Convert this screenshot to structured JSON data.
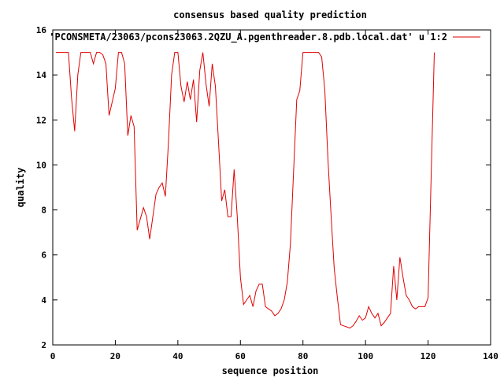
{
  "chart_data": {
    "type": "line",
    "title": "consensus based quality prediction",
    "xlabel": "sequence position",
    "ylabel": "quality",
    "xlim": [
      0,
      140
    ],
    "ylim": [
      2,
      16
    ],
    "xticks": [
      0,
      20,
      40,
      60,
      80,
      100,
      120,
      140
    ],
    "yticks": [
      2,
      4,
      6,
      8,
      10,
      12,
      14,
      16
    ],
    "grid": false,
    "legend_position": "top-right",
    "series": [
      {
        "name": "'PCONSMETA/23063/pcons23063.2QZU_A.pgenthreader.8.pdb.local.dat' u 1:2",
        "color": "#e00000",
        "x": [
          1,
          2,
          3,
          4,
          5,
          6,
          7,
          8,
          9,
          10,
          11,
          12,
          13,
          14,
          15,
          16,
          17,
          18,
          19,
          20,
          21,
          22,
          23,
          24,
          25,
          26,
          27,
          28,
          29,
          30,
          31,
          32,
          33,
          34,
          35,
          36,
          37,
          38,
          39,
          40,
          41,
          42,
          43,
          44,
          45,
          46,
          47,
          48,
          49,
          50,
          51,
          52,
          53,
          54,
          55,
          56,
          57,
          58,
          59,
          60,
          61,
          62,
          63,
          64,
          65,
          66,
          67,
          68,
          69,
          70,
          71,
          72,
          73,
          74,
          75,
          76,
          77,
          78,
          79,
          80,
          81,
          82,
          83,
          84,
          85,
          86,
          87,
          88,
          89,
          90,
          91,
          92,
          93,
          94,
          95,
          96,
          97,
          98,
          99,
          100,
          101,
          102,
          103,
          104,
          105,
          106,
          107,
          108,
          109,
          110,
          111,
          112,
          113,
          114,
          115,
          116,
          117,
          118,
          119,
          120,
          121,
          122
        ],
        "y": [
          15,
          15,
          15,
          15,
          15,
          13,
          11.5,
          14,
          15,
          15,
          15,
          15,
          14.5,
          15,
          15,
          14.9,
          14.5,
          12.2,
          12.8,
          13.4,
          15,
          15,
          14.5,
          11.3,
          12.2,
          11.7,
          7.1,
          7.6,
          8.1,
          7.7,
          6.7,
          7.7,
          8.7,
          9,
          9.2,
          8.6,
          11,
          14,
          15,
          15,
          13.5,
          12.8,
          13.7,
          12.9,
          13.8,
          11.9,
          14.2,
          15,
          13.6,
          12.6,
          14.5,
          13.5,
          11,
          8.4,
          8.9,
          7.7,
          7.7,
          9.8,
          7.7,
          5,
          3.8,
          4,
          4.2,
          3.7,
          4.4,
          4.7,
          4.7,
          3.7,
          3.6,
          3.5,
          3.3,
          3.4,
          3.6,
          4,
          4.8,
          6.5,
          9.7,
          12.9,
          13.3,
          15,
          15,
          15,
          15,
          15,
          15,
          14.8,
          13.3,
          10.2,
          7.7,
          5.4,
          4.1,
          2.9,
          2.85,
          2.8,
          2.75,
          2.85,
          3.05,
          3.3,
          3.1,
          3.2,
          3.7,
          3.4,
          3.2,
          3.4,
          2.85,
          3,
          3.2,
          3.4,
          5.5,
          4,
          5.9,
          5,
          4.2,
          4,
          3.7,
          3.6,
          3.7,
          3.7,
          3.7,
          4.1,
          9.5,
          15
        ]
      }
    ]
  }
}
